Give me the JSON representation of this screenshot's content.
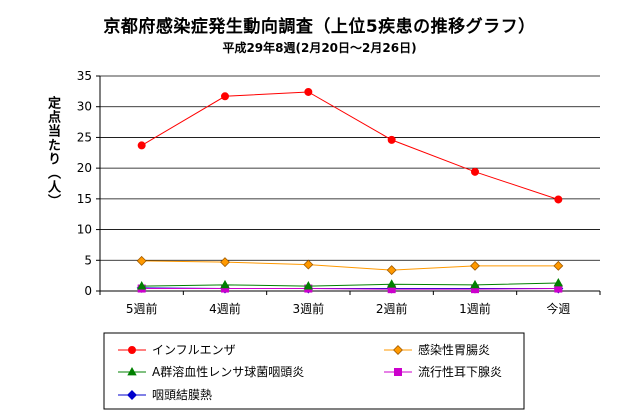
{
  "chart_data": {
    "type": "line",
    "title": "京都府感染症発生動向調査（上位5疾患の推移グラフ）",
    "subtitle": "平成29年8週(2月20日～2月26日)",
    "ylabel": "定点当たり（人）",
    "xlabel": "",
    "categories": [
      "5週前",
      "4週前",
      "3週前",
      "2週前",
      "1週前",
      "今週"
    ],
    "ylim": [
      0,
      35
    ],
    "yticks": [
      0,
      5,
      10,
      15,
      20,
      25,
      30,
      35
    ],
    "grid": true,
    "legend_position": "bottom",
    "series": [
      {
        "name": "インフルエンザ",
        "color": "#ff0000",
        "marker": "circle",
        "values": [
          23.7,
          31.7,
          32.4,
          24.6,
          19.4,
          14.9
        ]
      },
      {
        "name": "感染性胃腸炎",
        "color": "#ff9900",
        "marker": "diamond",
        "values": [
          4.9,
          4.7,
          4.3,
          3.4,
          4.1,
          4.1
        ]
      },
      {
        "name": "A群溶血性レンサ球菌咽頭炎",
        "color": "#008000",
        "marker": "triangle",
        "values": [
          0.8,
          1.0,
          0.8,
          1.1,
          1.0,
          1.3
        ]
      },
      {
        "name": "流行性耳下腺炎",
        "color": "#cc00cc",
        "marker": "square",
        "values": [
          0.4,
          0.4,
          0.4,
          0.3,
          0.3,
          0.4
        ]
      },
      {
        "name": "咽頭結膜熱",
        "color": "#0000cc",
        "marker": "diamond",
        "values": [
          0.5,
          0.4,
          0.4,
          0.4,
          0.4,
          0.4
        ]
      }
    ]
  }
}
